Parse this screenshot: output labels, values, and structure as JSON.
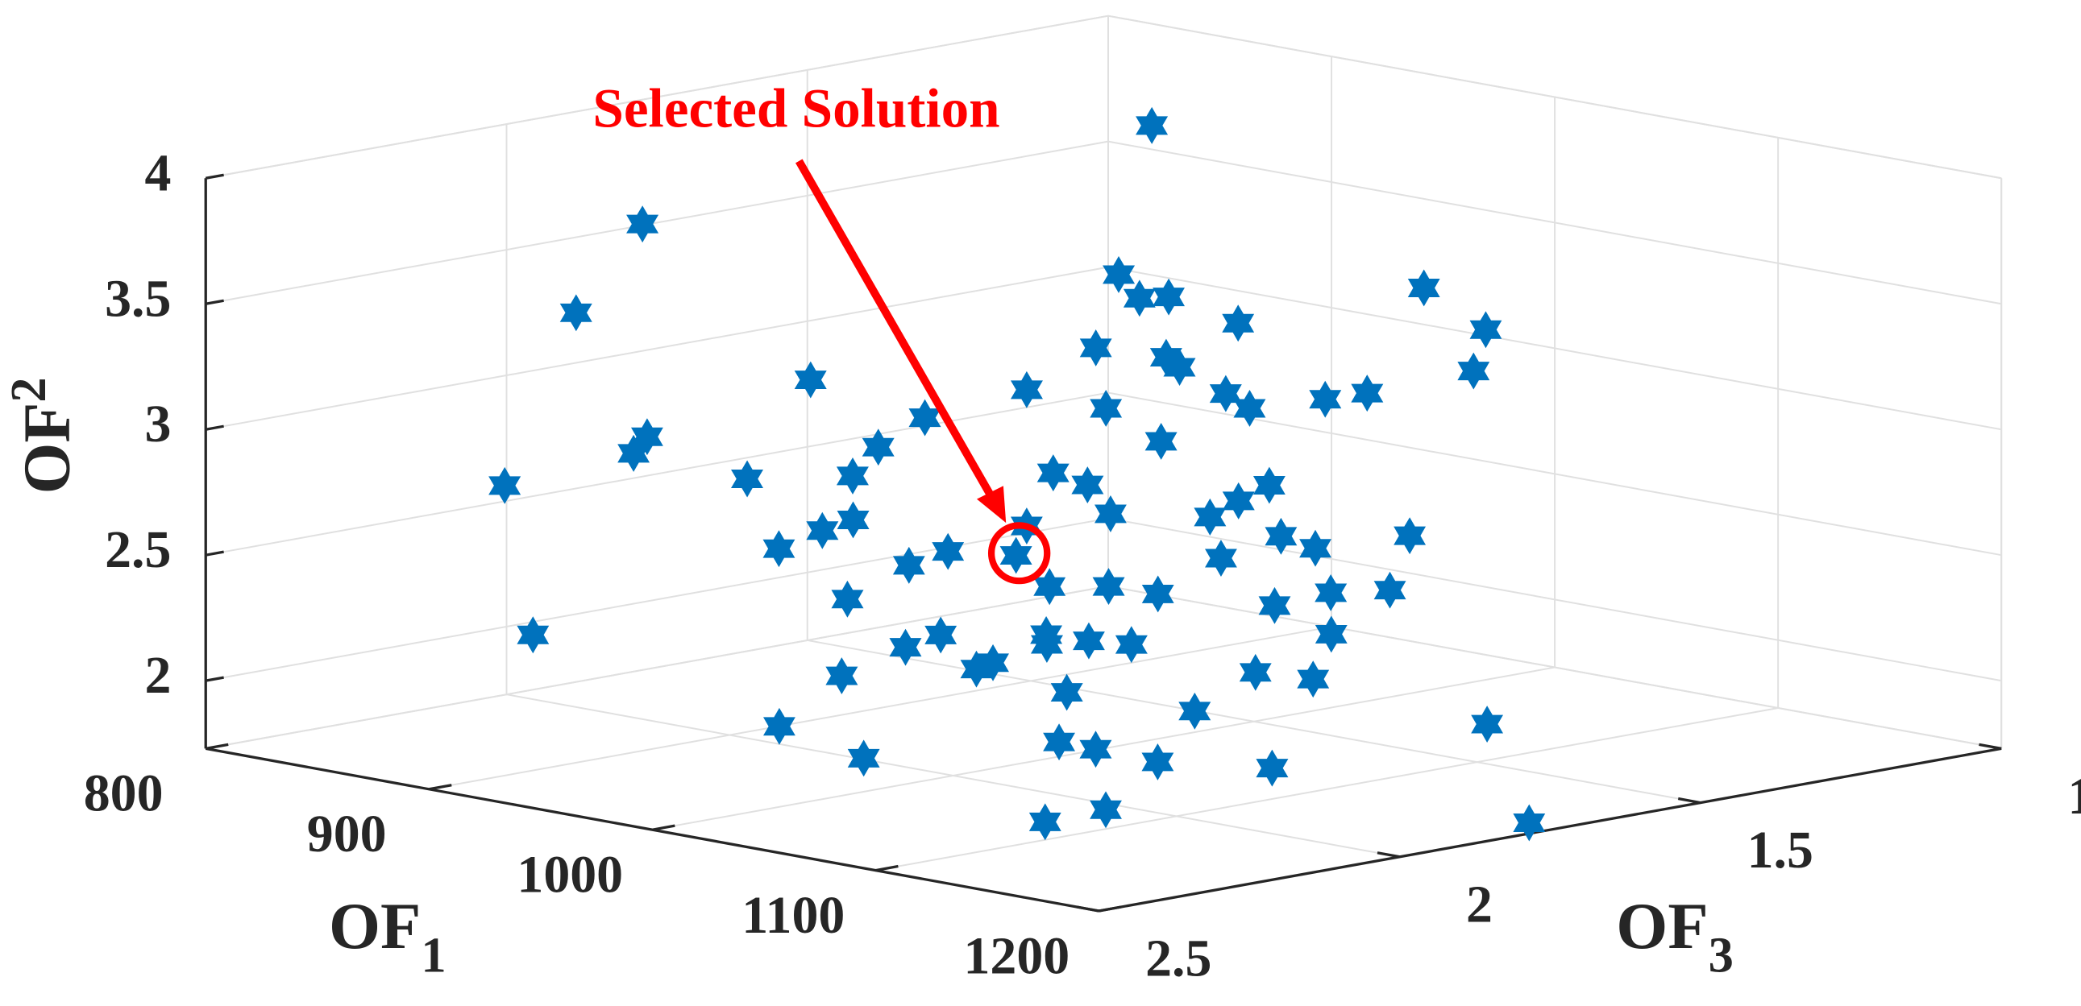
{
  "chart_data": {
    "type": "scatter3d",
    "annotation": "Selected Solution",
    "xlabel": {
      "text": "OF",
      "subscript": "1"
    },
    "ylabel": {
      "text": "OF",
      "subscript": "3"
    },
    "zlabel": {
      "text": "OF",
      "subscript": "2"
    },
    "xlim": [
      800,
      1200
    ],
    "ylim": [
      1,
      2.5
    ],
    "zlim": [
      1.73,
      4
    ],
    "xticks": [
      800,
      900,
      1000,
      1100,
      1200
    ],
    "yticks": [
      1,
      1.5,
      2,
      2.5
    ],
    "zticks": [
      2,
      2.5,
      3,
      3.5,
      4
    ],
    "grid": true,
    "series": [
      {
        "color": "#0072BD",
        "marker": "hexagram",
        "x": [
          930,
          842,
          850,
          961,
          973,
          978,
          1033,
          1058,
          1066,
          1001,
          975,
          993,
          999,
          920,
          971,
          1017,
          1025,
          1040,
          1048,
          993,
          955,
          898,
          900,
          953,
          1015,
          932,
          880,
          955,
          999,
          1009,
          1050,
          1022,
          1045,
          1047,
          966,
          963,
          1006,
          1066,
          1076,
          957,
          995,
          991,
          1012,
          1058,
          1094,
          1027,
          1040,
          1054,
          1091,
          1104,
          985,
          1082,
          925,
          1016,
          1011,
          1039,
          1042,
          1050,
          1061,
          1102,
          1032,
          1034,
          1004,
          1095,
          1110,
          1059,
          1092,
          1003,
          1161,
          1069,
          1080,
          1030,
          1097,
          1124,
          1087,
          1098,
          1196
        ],
        "y": [
          1.41,
          1.93,
          2.07,
          1.58,
          1.59,
          1.56,
          1.34,
          1.33,
          1.38,
          1.53,
          1.67,
          1.62,
          1.62,
          1.94,
          1.77,
          1.61,
          1.6,
          1.53,
          1.49,
          1.72,
          1.88,
          2.13,
          2.16,
          1.95,
          1.71,
          2.09,
          2.3,
          2.0,
          1.83,
          1.81,
          1.66,
          1.82,
          1.74,
          1.7,
          2.04,
          2.08,
          1.9,
          1.7,
          1.68,
          2.13,
          1.99,
          2.04,
          1.94,
          1.77,
          1.59,
          1.94,
          1.89,
          1.86,
          1.71,
          1.66,
          2.12,
          1.77,
          2.42,
          2.08,
          2.12,
          1.99,
          2.0,
          1.96,
          1.93,
          1.75,
          2.08,
          2.06,
          2.2,
          1.85,
          1.81,
          2.03,
          1.94,
          2.3,
          1.71,
          2.08,
          2.06,
          2.26,
          2.02,
          1.93,
          2.17,
          2.11,
          1.77
        ],
        "z": [
          3.95,
          3.64,
          3.36,
          3.48,
          3.41,
          3.41,
          3.44,
          3.31,
          3.18,
          3.33,
          3.25,
          3.22,
          3.19,
          3.15,
          3.12,
          3.11,
          3.06,
          3.09,
          3.11,
          3.06,
          3.03,
          2.97,
          2.92,
          2.94,
          2.96,
          2.84,
          2.82,
          2.85,
          2.86,
          2.82,
          2.82,
          2.73,
          2.72,
          2.77,
          2.71,
          2.68,
          2.69,
          2.66,
          2.62,
          2.62,
          2.61,
          2.57,
          2.6,
          2.59,
          2.66,
          2.5,
          2.5,
          2.48,
          2.48,
          2.49,
          2.46,
          2.44,
          2.35,
          2.35,
          2.31,
          2.35,
          2.32,
          2.33,
          2.32,
          2.35,
          2.24,
          2.26,
          2.22,
          2.23,
          2.21,
          2.17,
          2.11,
          2.06,
          2.07,
          2.01,
          1.99,
          1.96,
          1.95,
          1.93,
          1.76,
          1.8,
          1.76
        ]
      }
    ]
  }
}
